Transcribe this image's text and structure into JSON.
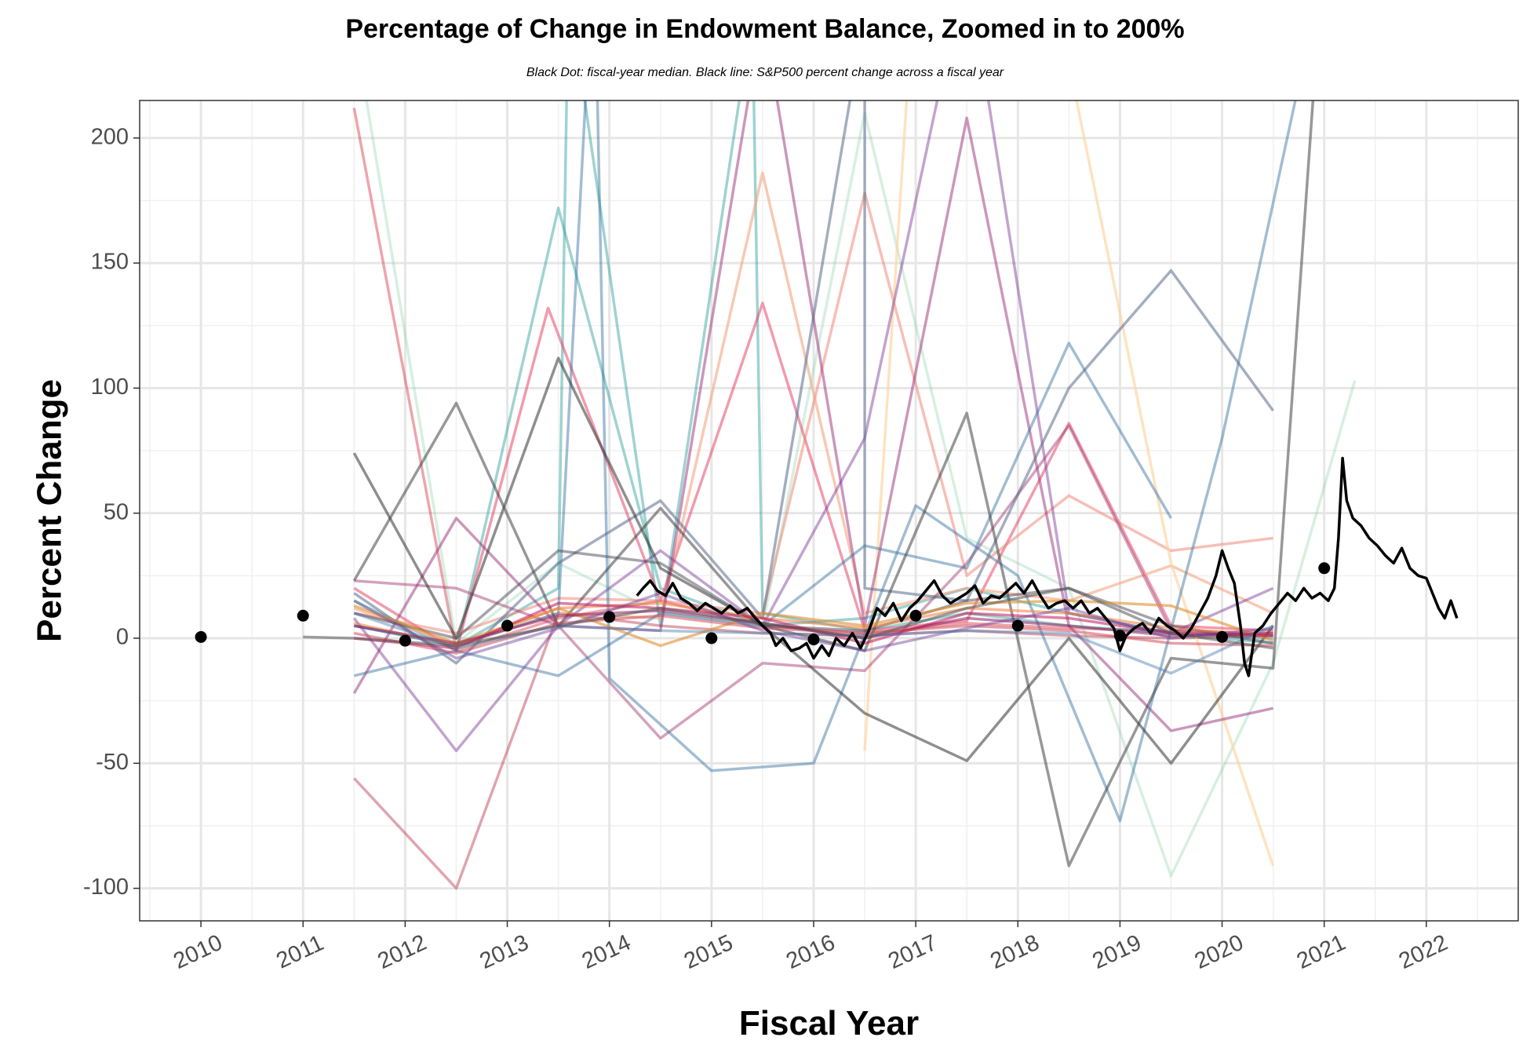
{
  "chart_data": {
    "type": "line",
    "title": "Percentage of Change in Endowment Balance, Zoomed in to 200%",
    "subtitle": "Black Dot: fiscal-year median. Black line: S&P500 percent change across a fiscal year",
    "xlabel": "Fiscal Year",
    "ylabel": "Percent Change",
    "xlim": [
      2009.4,
      2022.9
    ],
    "ylim": [
      -113,
      215
    ],
    "x_ticks": [
      2010,
      2011,
      2012,
      2013,
      2014,
      2015,
      2016,
      2017,
      2018,
      2019,
      2020,
      2021,
      2022
    ],
    "y_ticks": [
      -100,
      -50,
      0,
      50,
      100,
      150,
      200
    ],
    "x_tick_labels": [
      "2010",
      "2011",
      "2012",
      "2013",
      "2014",
      "2015",
      "2016",
      "2017",
      "2018",
      "2019",
      "2020",
      "2021",
      "2022"
    ],
    "y_tick_labels": [
      "-100",
      "-50",
      "0",
      "50",
      "100",
      "150",
      "200"
    ],
    "grid": true,
    "legend": "none",
    "medians": {
      "name": "fiscal-year median",
      "x": [
        2010,
        2011,
        2012,
        2013,
        2014,
        2015,
        2016,
        2017,
        2018,
        2019,
        2020,
        2021
      ],
      "y": [
        0.5,
        9,
        -1,
        5,
        8.5,
        0,
        -0.5,
        9,
        5,
        1,
        0.5,
        28
      ]
    },
    "sp500": {
      "name": "S&P500 percent change across a fiscal year",
      "color": "#000000",
      "x": [
        2014.27,
        2014.33,
        2014.4,
        2014.47,
        2014.55,
        2014.62,
        2014.7,
        2014.78,
        2014.86,
        2014.94,
        2015.02,
        2015.1,
        2015.18,
        2015.26,
        2015.35,
        2015.43,
        2015.5,
        2015.58,
        2015.63,
        2015.7,
        2015.78,
        2015.86,
        2015.93,
        2016.0,
        2016.08,
        2016.15,
        2016.22,
        2016.3,
        2016.38,
        2016.46,
        2016.54,
        2016.62,
        2016.7,
        2016.78,
        2016.86,
        2016.94,
        2017.02,
        2017.1,
        2017.18,
        2017.26,
        2017.34,
        2017.42,
        2017.5,
        2017.58,
        2017.66,
        2017.74,
        2017.82,
        2017.9,
        2017.98,
        2018.06,
        2018.14,
        2018.22,
        2018.3,
        2018.38,
        2018.46,
        2018.54,
        2018.62,
        2018.7,
        2018.78,
        2018.86,
        2018.94,
        2019.0,
        2019.06,
        2019.14,
        2019.22,
        2019.3,
        2019.38,
        2019.46,
        2019.54,
        2019.62,
        2019.7,
        2019.78,
        2019.86,
        2019.94,
        2020.0,
        2020.06,
        2020.12,
        2020.18,
        2020.22,
        2020.26,
        2020.32,
        2020.4,
        2020.48,
        2020.56,
        2020.64,
        2020.72,
        2020.8,
        2020.88,
        2020.96,
        2021.04,
        2021.1,
        2021.14,
        2021.18,
        2021.22,
        2021.28,
        2021.36,
        2021.44,
        2021.52,
        2021.6,
        2021.68,
        2021.76,
        2021.84,
        2021.92,
        2022.0,
        2022.06,
        2022.12,
        2022.18,
        2022.24,
        2022.3
      ],
      "y": [
        17,
        20,
        23,
        19,
        17,
        22,
        16,
        14,
        11,
        14,
        12,
        10,
        13,
        10,
        12,
        8,
        5,
        2,
        -3,
        0,
        -5,
        -4,
        -2,
        -8,
        -3,
        -7,
        0,
        -3,
        2,
        -4,
        3,
        12,
        9,
        14,
        7,
        12,
        15,
        19,
        23,
        17,
        14,
        16,
        18,
        21,
        14,
        17,
        16,
        19,
        22,
        18,
        23,
        17,
        12,
        14,
        15,
        12,
        15,
        10,
        12,
        8,
        4,
        -5,
        1,
        4,
        6,
        2,
        8,
        5,
        3,
        0,
        4,
        10,
        16,
        25,
        35,
        28,
        22,
        5,
        -10,
        -15,
        2,
        5,
        10,
        14,
        18,
        15,
        20,
        16,
        18,
        15,
        20,
        40,
        72,
        55,
        48,
        45,
        40,
        37,
        33,
        30,
        36,
        28,
        25,
        24,
        18,
        12,
        8,
        15,
        8
      ]
    },
    "series": [
      {
        "color": "#d11f2f",
        "alpha": 0.4,
        "x": [
          2011.5,
          2012.5,
          2013.5,
          2014.5,
          2015.5,
          2016.5,
          2017.5,
          2018.5,
          2019.5,
          2020.5
        ],
        "y": [
          212,
          -5,
          8,
          15,
          5,
          2,
          6,
          4,
          3,
          2
        ]
      },
      {
        "color": "#76c99a",
        "alpha": 0.3,
        "x": [
          2011.5,
          2012.5,
          2013.5,
          2014.5,
          2015.5,
          2016.5,
          2017.5,
          2018.5,
          2019.5,
          2020.5,
          2021.3
        ],
        "y": [
          245,
          -2,
          30,
          10,
          5,
          210,
          40,
          20,
          -95,
          -10,
          103
        ]
      },
      {
        "color": "#2a9d9a",
        "alpha": 0.45,
        "x": [
          2011.5,
          2012.5,
          2013.5,
          2014.5,
          2015.5,
          2016.5,
          2017.5,
          2018.5,
          2019.5,
          2020.5
        ],
        "y": [
          15,
          -5,
          172,
          20,
          5,
          8,
          20,
          10,
          2,
          -2
        ]
      },
      {
        "color": "#2a9d9a",
        "alpha": 0.45,
        "x": [
          2011.5,
          2012.5,
          2013.5,
          2013.6,
          2014.5,
          2015.4,
          2015.5,
          2016.5,
          2017.5,
          2018.5,
          2019.5,
          2020.5
        ],
        "y": [
          5,
          -3,
          20,
          260,
          5,
          250,
          10,
          3,
          10,
          5,
          2,
          0
        ]
      },
      {
        "color": "#e33a5e",
        "alpha": 0.5,
        "x": [
          2011.5,
          2012.5,
          2013.4,
          2014.5,
          2015.5,
          2016.5,
          2017.5,
          2018.5,
          2019.5,
          2020.5
        ],
        "y": [
          20,
          -5,
          132,
          15,
          134,
          3,
          7,
          86,
          5,
          3
        ]
      },
      {
        "color": "#b8384e",
        "alpha": 0.45,
        "x": [
          2011.5,
          2012.5,
          2013.5,
          2014.5,
          2015.5,
          2016.5,
          2017.5,
          2018.5,
          2019.5,
          2020.5
        ],
        "y": [
          -56,
          -100,
          10,
          5,
          2,
          1,
          3,
          1,
          0,
          1
        ]
      },
      {
        "color": "#f08070",
        "alpha": 0.5,
        "x": [
          2011.5,
          2012.5,
          2013.5,
          2014.5,
          2015.5,
          2016.5,
          2017.5,
          2018.5,
          2019.5,
          2020.5
        ],
        "y": [
          10,
          2,
          16,
          15,
          10,
          178,
          25,
          57,
          35,
          40
        ]
      },
      {
        "color": "#f4a582",
        "alpha": 0.6,
        "x": [
          2011.5,
          2012.5,
          2013.5,
          2014.5,
          2015.5,
          2016.5,
          2017.5,
          2018.5,
          2019.5,
          2020.5
        ],
        "y": [
          12,
          -3,
          10,
          8,
          186,
          10,
          20,
          15,
          29,
          10
        ]
      },
      {
        "color": "#fdd49e",
        "alpha": 0.65,
        "x": [
          2016.5,
          2016.95,
          2018.5,
          2019.5,
          2020.5
        ],
        "y": [
          -45,
          240,
          230,
          30,
          -91
        ]
      },
      {
        "color": "#9a2f7a",
        "alpha": 0.5,
        "x": [
          2011.5,
          2012.5,
          2013.5,
          2014.5,
          2015.5,
          2016.5,
          2017.5,
          2018.5,
          2019.5,
          2020.5
        ],
        "y": [
          -22,
          48,
          5,
          3,
          250,
          5,
          208,
          5,
          -37,
          -28
        ]
      },
      {
        "color": "#7b3294",
        "alpha": 0.45,
        "x": [
          2011.5,
          2012.5,
          2013.5,
          2014.5,
          2015.5,
          2016.5,
          2017.5,
          2018.5,
          2019.5,
          2020.5
        ],
        "y": [
          8,
          -45,
          5,
          35,
          5,
          80,
          270,
          10,
          2,
          20
        ]
      },
      {
        "color": "#a0306b",
        "alpha": 0.45,
        "x": [
          2011.5,
          2012.5,
          2013.5,
          2014.5,
          2015.5,
          2016.5,
          2017.5,
          2018.5,
          2019.5,
          2020.5
        ],
        "y": [
          23,
          20,
          5,
          -40,
          -10,
          -13,
          30,
          85,
          3,
          1
        ]
      },
      {
        "color": "#2e6d9e",
        "alpha": 0.45,
        "x": [
          2011.5,
          2012.5,
          2013.5,
          2014.5,
          2015.5,
          2016.5,
          2017.5,
          2018.5,
          2019.5,
          2020.5
        ],
        "y": [
          -15,
          -5,
          -15,
          10,
          5,
          37,
          28,
          118,
          48,
          null
        ]
      },
      {
        "color": "#2e6d9e",
        "alpha": 0.45,
        "x": [
          2011.5,
          2012.5,
          2013.5,
          2013.85,
          2014.0,
          2015.0,
          2016.0,
          2017.0,
          2018.0,
          2019.0,
          2020.0,
          2020.85
        ],
        "y": [
          5,
          -3,
          10,
          280,
          -16,
          -53,
          -50,
          53,
          25,
          -73,
          80,
          240
        ]
      },
      {
        "color": "#5a6b8c",
        "alpha": 0.55,
        "x": [
          2011.5,
          2012.5,
          2013.5,
          2014.5,
          2015.5,
          2016.5,
          2016.5,
          2017.5,
          2018.5,
          2019.5,
          2020.5
        ],
        "y": [
          18,
          -10,
          30,
          55,
          8,
          250,
          20,
          15,
          100,
          147,
          91
        ]
      },
      {
        "color": "#333333",
        "alpha": 0.55,
        "x": [
          2011.5,
          2012.5,
          2013.5,
          2014.5,
          2015.5,
          2016.5,
          2017.5,
          2018.5,
          2019.5,
          2020.5
        ],
        "y": [
          74,
          0,
          112,
          28,
          5,
          -30,
          -49,
          0,
          -50,
          5
        ]
      },
      {
        "color": "#444444",
        "alpha": 0.55,
        "x": [
          2011.5,
          2012.5,
          2013.5,
          2014.5,
          2015.5,
          2016.5,
          2017.5,
          2018.5,
          2019.5,
          2020.5,
          2020.95
        ],
        "y": [
          23,
          94,
          5,
          52,
          5,
          -5,
          90,
          -91,
          -8,
          -12,
          250
        ]
      },
      {
        "color": "#4a4a5a",
        "alpha": 0.5,
        "x": [
          2011.5,
          2012.5,
          2013.5,
          2014.5,
          2015.5,
          2016.5,
          2017.5,
          2018.5,
          2019.5,
          2020.5
        ],
        "y": [
          10,
          0,
          35,
          30,
          5,
          3,
          15,
          20,
          5,
          -2
        ]
      },
      {
        "color": "#e09030",
        "alpha": 0.6,
        "x": [
          2011.5,
          2012.5,
          2013.5,
          2014.5,
          2015.5,
          2016.5,
          2017.5,
          2018.5,
          2019.5,
          2020.5
        ],
        "y": [
          13,
          -2,
          12,
          -3,
          10,
          5,
          14,
          15,
          13,
          -1
        ]
      },
      {
        "color": "#f08040",
        "alpha": 0.55,
        "x": [
          2011.5,
          2012.5,
          2013.5,
          2014.5,
          2015.5,
          2016.5,
          2017.5,
          2018.5,
          2019.5,
          2020.5
        ],
        "y": [
          6,
          -3,
          12,
          14,
          8,
          4,
          12,
          10,
          4,
          1
        ]
      },
      {
        "color": "#c2185b",
        "alpha": 0.55,
        "x": [
          2011.5,
          2012.5,
          2013.5,
          2014.5,
          2015.5,
          2016.5,
          2017.5,
          2018.5,
          2019.5,
          2020.5
        ],
        "y": [
          0,
          -4,
          14,
          12,
          8,
          -2,
          10,
          8,
          2,
          1
        ]
      },
      {
        "color": "#8e2060",
        "alpha": 0.55,
        "x": [
          2011.5,
          2012.5,
          2013.5,
          2014.5,
          2015.5,
          2016.5,
          2017.5,
          2018.5,
          2019.5,
          2020.5
        ],
        "y": [
          5,
          -2,
          9,
          11,
          6,
          0,
          8,
          5,
          1,
          2
        ]
      },
      {
        "color": "#d04050",
        "alpha": 0.5,
        "x": [
          2011.5,
          2012.5,
          2013.5,
          2014.5,
          2015.5,
          2016.5,
          2017.5,
          2018.5,
          2019.5,
          2020.5
        ],
        "y": [
          2,
          -6,
          6,
          9,
          4,
          2,
          5,
          3,
          -2,
          -3
        ]
      },
      {
        "color": "#6a3d9a",
        "alpha": 0.45,
        "x": [
          2011.5,
          2012.5,
          2013.5,
          2014.5,
          2015.5,
          2016.5,
          2017.5,
          2018.5,
          2019.5,
          2020.5
        ],
        "y": [
          15,
          -8,
          4,
          18,
          3,
          -5,
          4,
          12,
          0,
          4
        ]
      },
      {
        "color": "#4a7fb0",
        "alpha": 0.45,
        "x": [
          2011.5,
          2012.5,
          2013.5,
          2014.5,
          2015.5,
          2016.5,
          2017.5,
          2018.5,
          2019.5,
          2020.5
        ],
        "y": [
          10,
          -4,
          5,
          3,
          2,
          1,
          3,
          2,
          -14,
          5
        ]
      },
      {
        "color": "#555555",
        "alpha": 0.55,
        "x": [
          2011.0,
          2011.5,
          2012.5,
          2013.5,
          2014.5,
          2015.5,
          2016.5,
          2017.5,
          2018.5,
          2019.5,
          2020.5
        ],
        "y": [
          0.5,
          0,
          -3,
          5,
          12,
          6,
          0,
          12,
          20,
          2,
          -4
        ]
      }
    ]
  }
}
